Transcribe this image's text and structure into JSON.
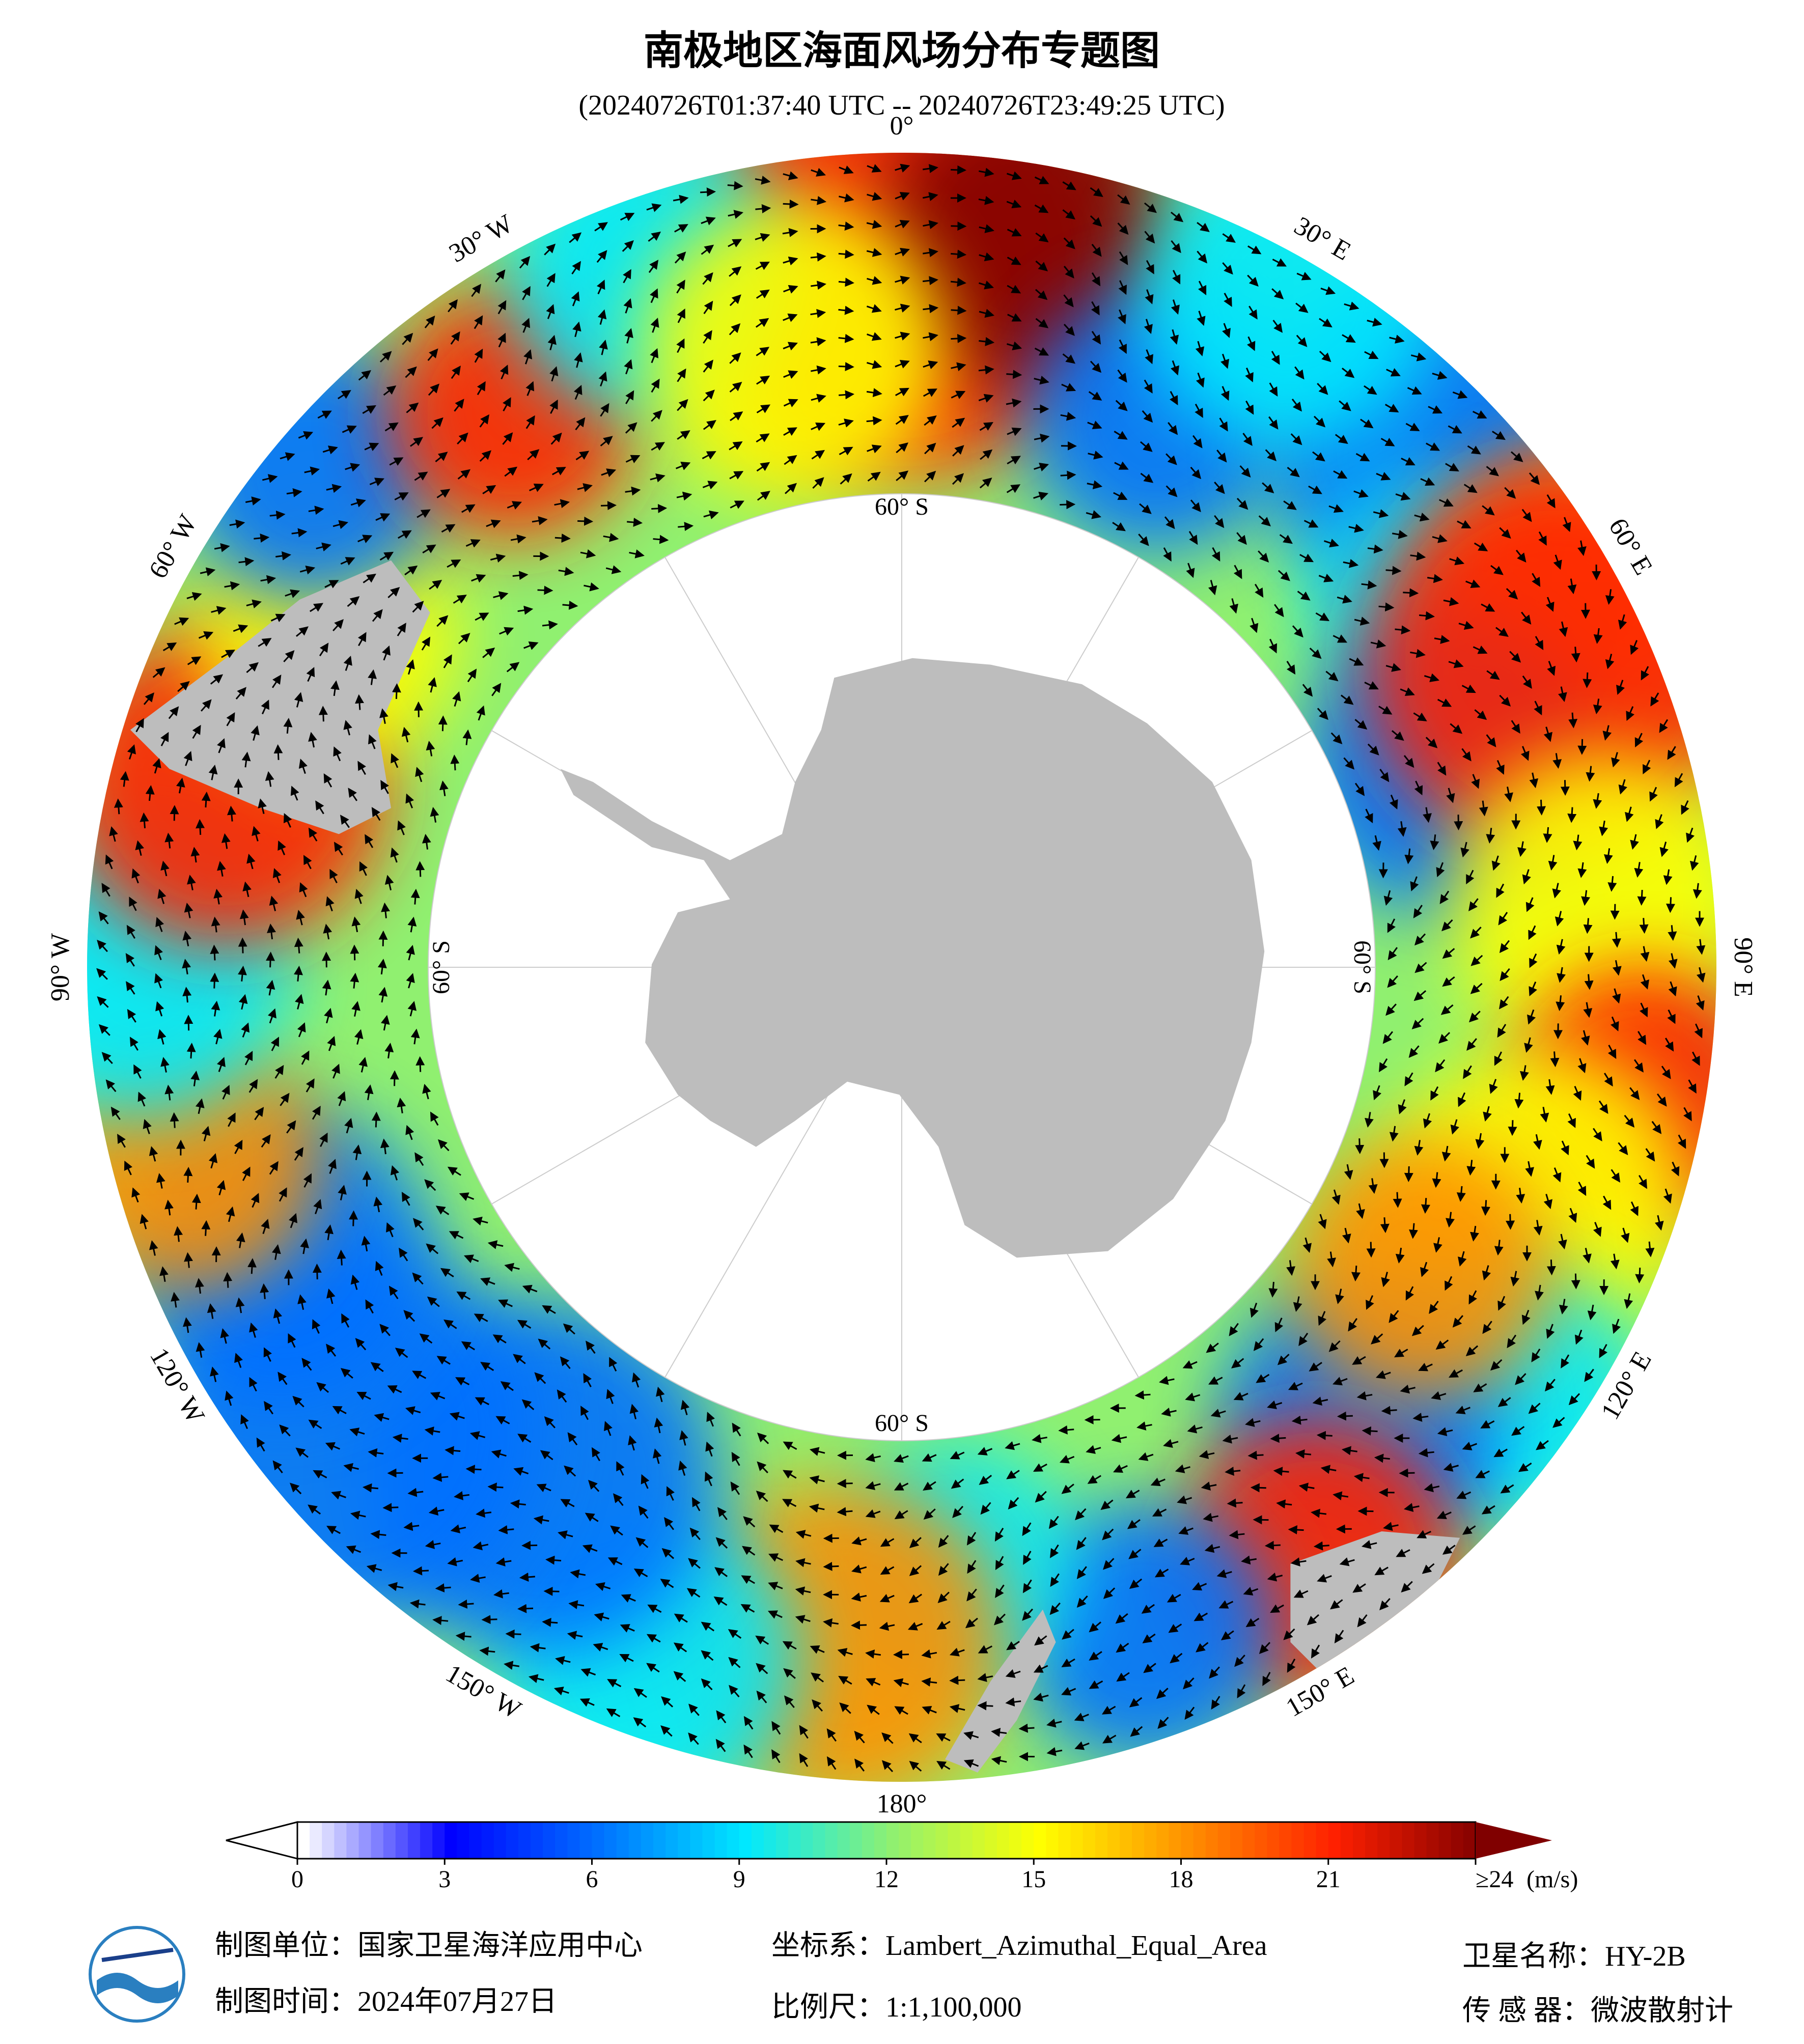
{
  "header": {
    "title": "南极地区海面风场分布专题图",
    "subtitle": "(20240726T01:37:40 UTC -- 20240726T23:49:25 UTC)"
  },
  "map": {
    "lon_labels": [
      "0°",
      "30° E",
      "60° E",
      "90° E",
      "120° E",
      "150° E",
      "180°",
      "150° W",
      "120° W",
      "90° W",
      "60° W",
      "30° W"
    ],
    "lat_label": "60° S"
  },
  "colorbar": {
    "range": [
      0,
      24
    ],
    "ticks": [
      0,
      3,
      6,
      9,
      12,
      15,
      18,
      21,
      {
        "value": 24,
        "label": "≥24"
      }
    ],
    "unit": "(m/s)",
    "colors": [
      "#ffffff",
      "#0000ff",
      "#0070ff",
      "#00e8ff",
      "#90f070",
      "#ffff00",
      "#ff9000",
      "#ff2000",
      "#800000"
    ]
  },
  "footer": {
    "unit": "制图单位：国家卫星海洋应用中心",
    "crs": "坐标系：Lambert_Azimuthal_Equal_Area",
    "satellite": "卫星名称：HY-2B",
    "date": "制图时间：2024年07月27日",
    "scale": "比例尺：1:1,100,000",
    "sensor": "传 感 器：微波散射计"
  }
}
